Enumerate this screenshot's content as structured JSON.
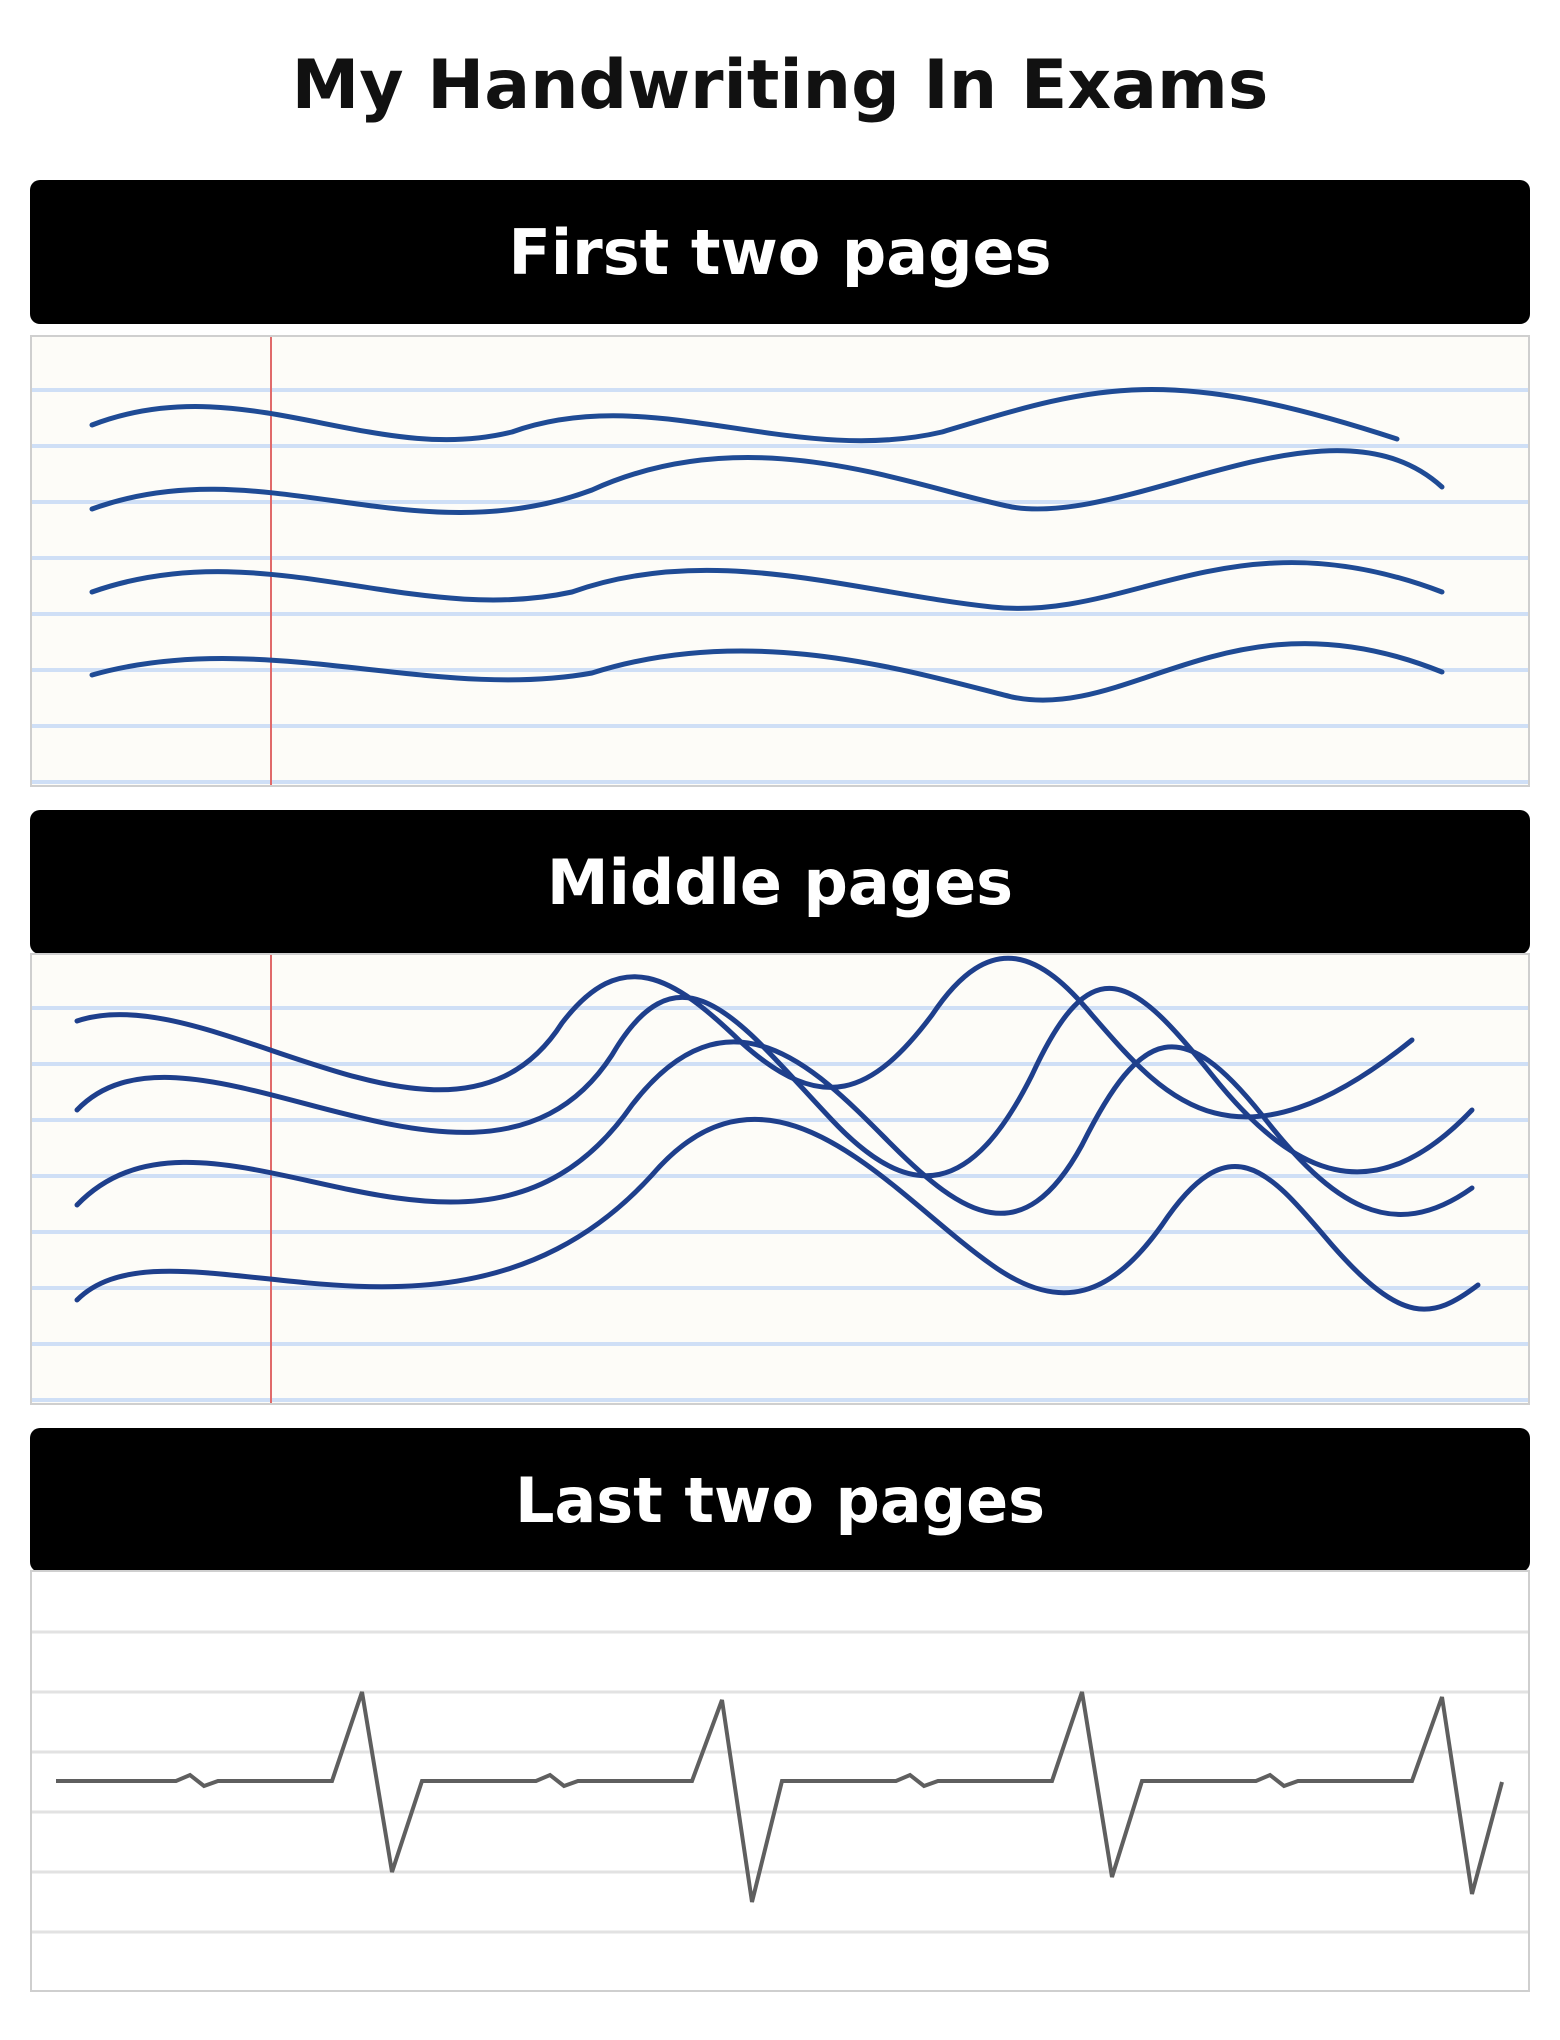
{
  "meme": {
    "title": "My Handwriting In Exams",
    "sections": [
      {
        "label": "First two pages",
        "style": "neat ruled paper with smooth handwriting waves"
      },
      {
        "label": "Middle pages",
        "style": "ruled paper with tangled oscillating scribbles"
      },
      {
        "label": "Last two pages",
        "style": "faint lined page with heartbeat / ECG line"
      }
    ],
    "colors": {
      "banner": "#000000",
      "banner_text": "#ffffff",
      "paper": "#fdfcf8",
      "ruling": "#cfdff6",
      "margin_line": "#e06a6a",
      "ink": "#1f4b95",
      "ink_middle": "#1e3f8c",
      "ecg": "#5f5f5f",
      "last_ruling": "#e2e2e2"
    }
  }
}
